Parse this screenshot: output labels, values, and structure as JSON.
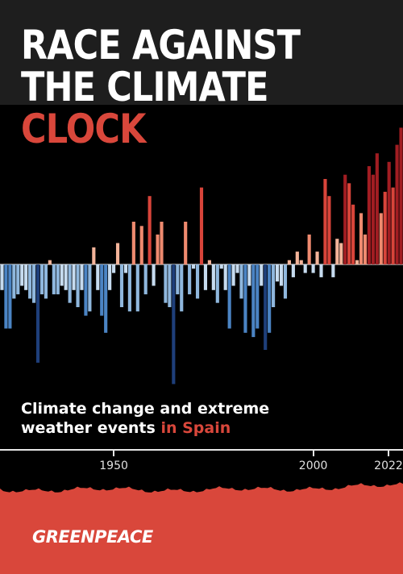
{
  "title": {
    "line1": "RACE AGAINST",
    "line2": "THE CLIMATE",
    "line3": "CLOCK"
  },
  "subtitle": {
    "line1": "Climate change and extreme",
    "line2_plain": "weather events ",
    "line2_accent": "in Spain"
  },
  "logo": "GREENPEACE",
  "colors": {
    "accent": "#d9473b",
    "warm_dark": "#a11d22",
    "warm_mid": "#d8443a",
    "warm_light": "#ef8a6f",
    "warm_pale": "#f4b49a",
    "cool_pale": "#c6dbef",
    "cool_light": "#8fb7dd",
    "cool_mid": "#4b84c4",
    "cool_dark": "#1e3f7a"
  },
  "chart_data": {
    "type": "bar",
    "description_shown": "warming stripes as diverging bars",
    "xlim": [
      1922,
      2022
    ],
    "x_ticks": [
      1950,
      2000,
      2022
    ],
    "x_tick_labels": [
      "1950",
      "2000",
      "2022"
    ],
    "x": [
      1922,
      1923,
      1924,
      1925,
      1926,
      1927,
      1928,
      1929,
      1930,
      1931,
      1932,
      1933,
      1934,
      1935,
      1936,
      1937,
      1938,
      1939,
      1940,
      1941,
      1942,
      1943,
      1944,
      1945,
      1946,
      1947,
      1948,
      1949,
      1950,
      1951,
      1952,
      1953,
      1954,
      1955,
      1956,
      1957,
      1958,
      1959,
      1960,
      1961,
      1962,
      1963,
      1964,
      1965,
      1966,
      1967,
      1968,
      1969,
      1970,
      1971,
      1972,
      1973,
      1974,
      1975,
      1976,
      1977,
      1978,
      1979,
      1980,
      1981,
      1982,
      1983,
      1984,
      1985,
      1986,
      1987,
      1988,
      1989,
      1990,
      1991,
      1992,
      1993,
      1994,
      1995,
      1996,
      1997,
      1998,
      1999,
      2000,
      2001,
      2002,
      2003,
      2004,
      2005,
      2006,
      2007,
      2008,
      2009,
      2010,
      2011,
      2012,
      2013,
      2014,
      2015,
      2016,
      2017,
      2018,
      2019,
      2020,
      2021,
      2022
    ],
    "values": [
      -0.3,
      -0.75,
      -0.75,
      -0.4,
      -0.35,
      -0.25,
      -0.3,
      -0.4,
      -0.45,
      -1.15,
      -0.35,
      -0.4,
      0.05,
      -0.35,
      -0.35,
      -0.25,
      -0.3,
      -0.45,
      -0.3,
      -0.5,
      -0.3,
      -0.6,
      -0.55,
      0.2,
      -0.3,
      -0.6,
      -0.8,
      -0.3,
      -0.1,
      0.25,
      -0.5,
      -0.1,
      -0.55,
      0.5,
      -0.55,
      0.45,
      -0.35,
      0.8,
      -0.25,
      0.35,
      0.5,
      -0.45,
      -0.5,
      -1.4,
      -0.35,
      -0.55,
      0.5,
      -0.35,
      -0.05,
      -0.4,
      0.9,
      -0.3,
      0.05,
      -0.3,
      -0.45,
      -0.05,
      -0.3,
      -0.75,
      -0.25,
      -0.1,
      -0.4,
      -0.8,
      -0.25,
      -0.85,
      -0.75,
      -0.25,
      -1.0,
      -0.8,
      -0.5,
      -0.2,
      -0.25,
      -0.4,
      0.05,
      -0.15,
      0.15,
      0.05,
      -0.1,
      0.35,
      -0.1,
      0.15,
      -0.15,
      1.0,
      0.8,
      -0.15,
      0.3,
      0.25,
      1.05,
      0.95,
      0.7,
      0.05,
      0.6,
      0.35,
      1.15,
      1.05,
      1.3,
      0.6,
      0.85,
      1.2,
      0.9,
      1.4,
      1.6
    ],
    "ylim": [
      -1.8,
      1.9
    ]
  }
}
